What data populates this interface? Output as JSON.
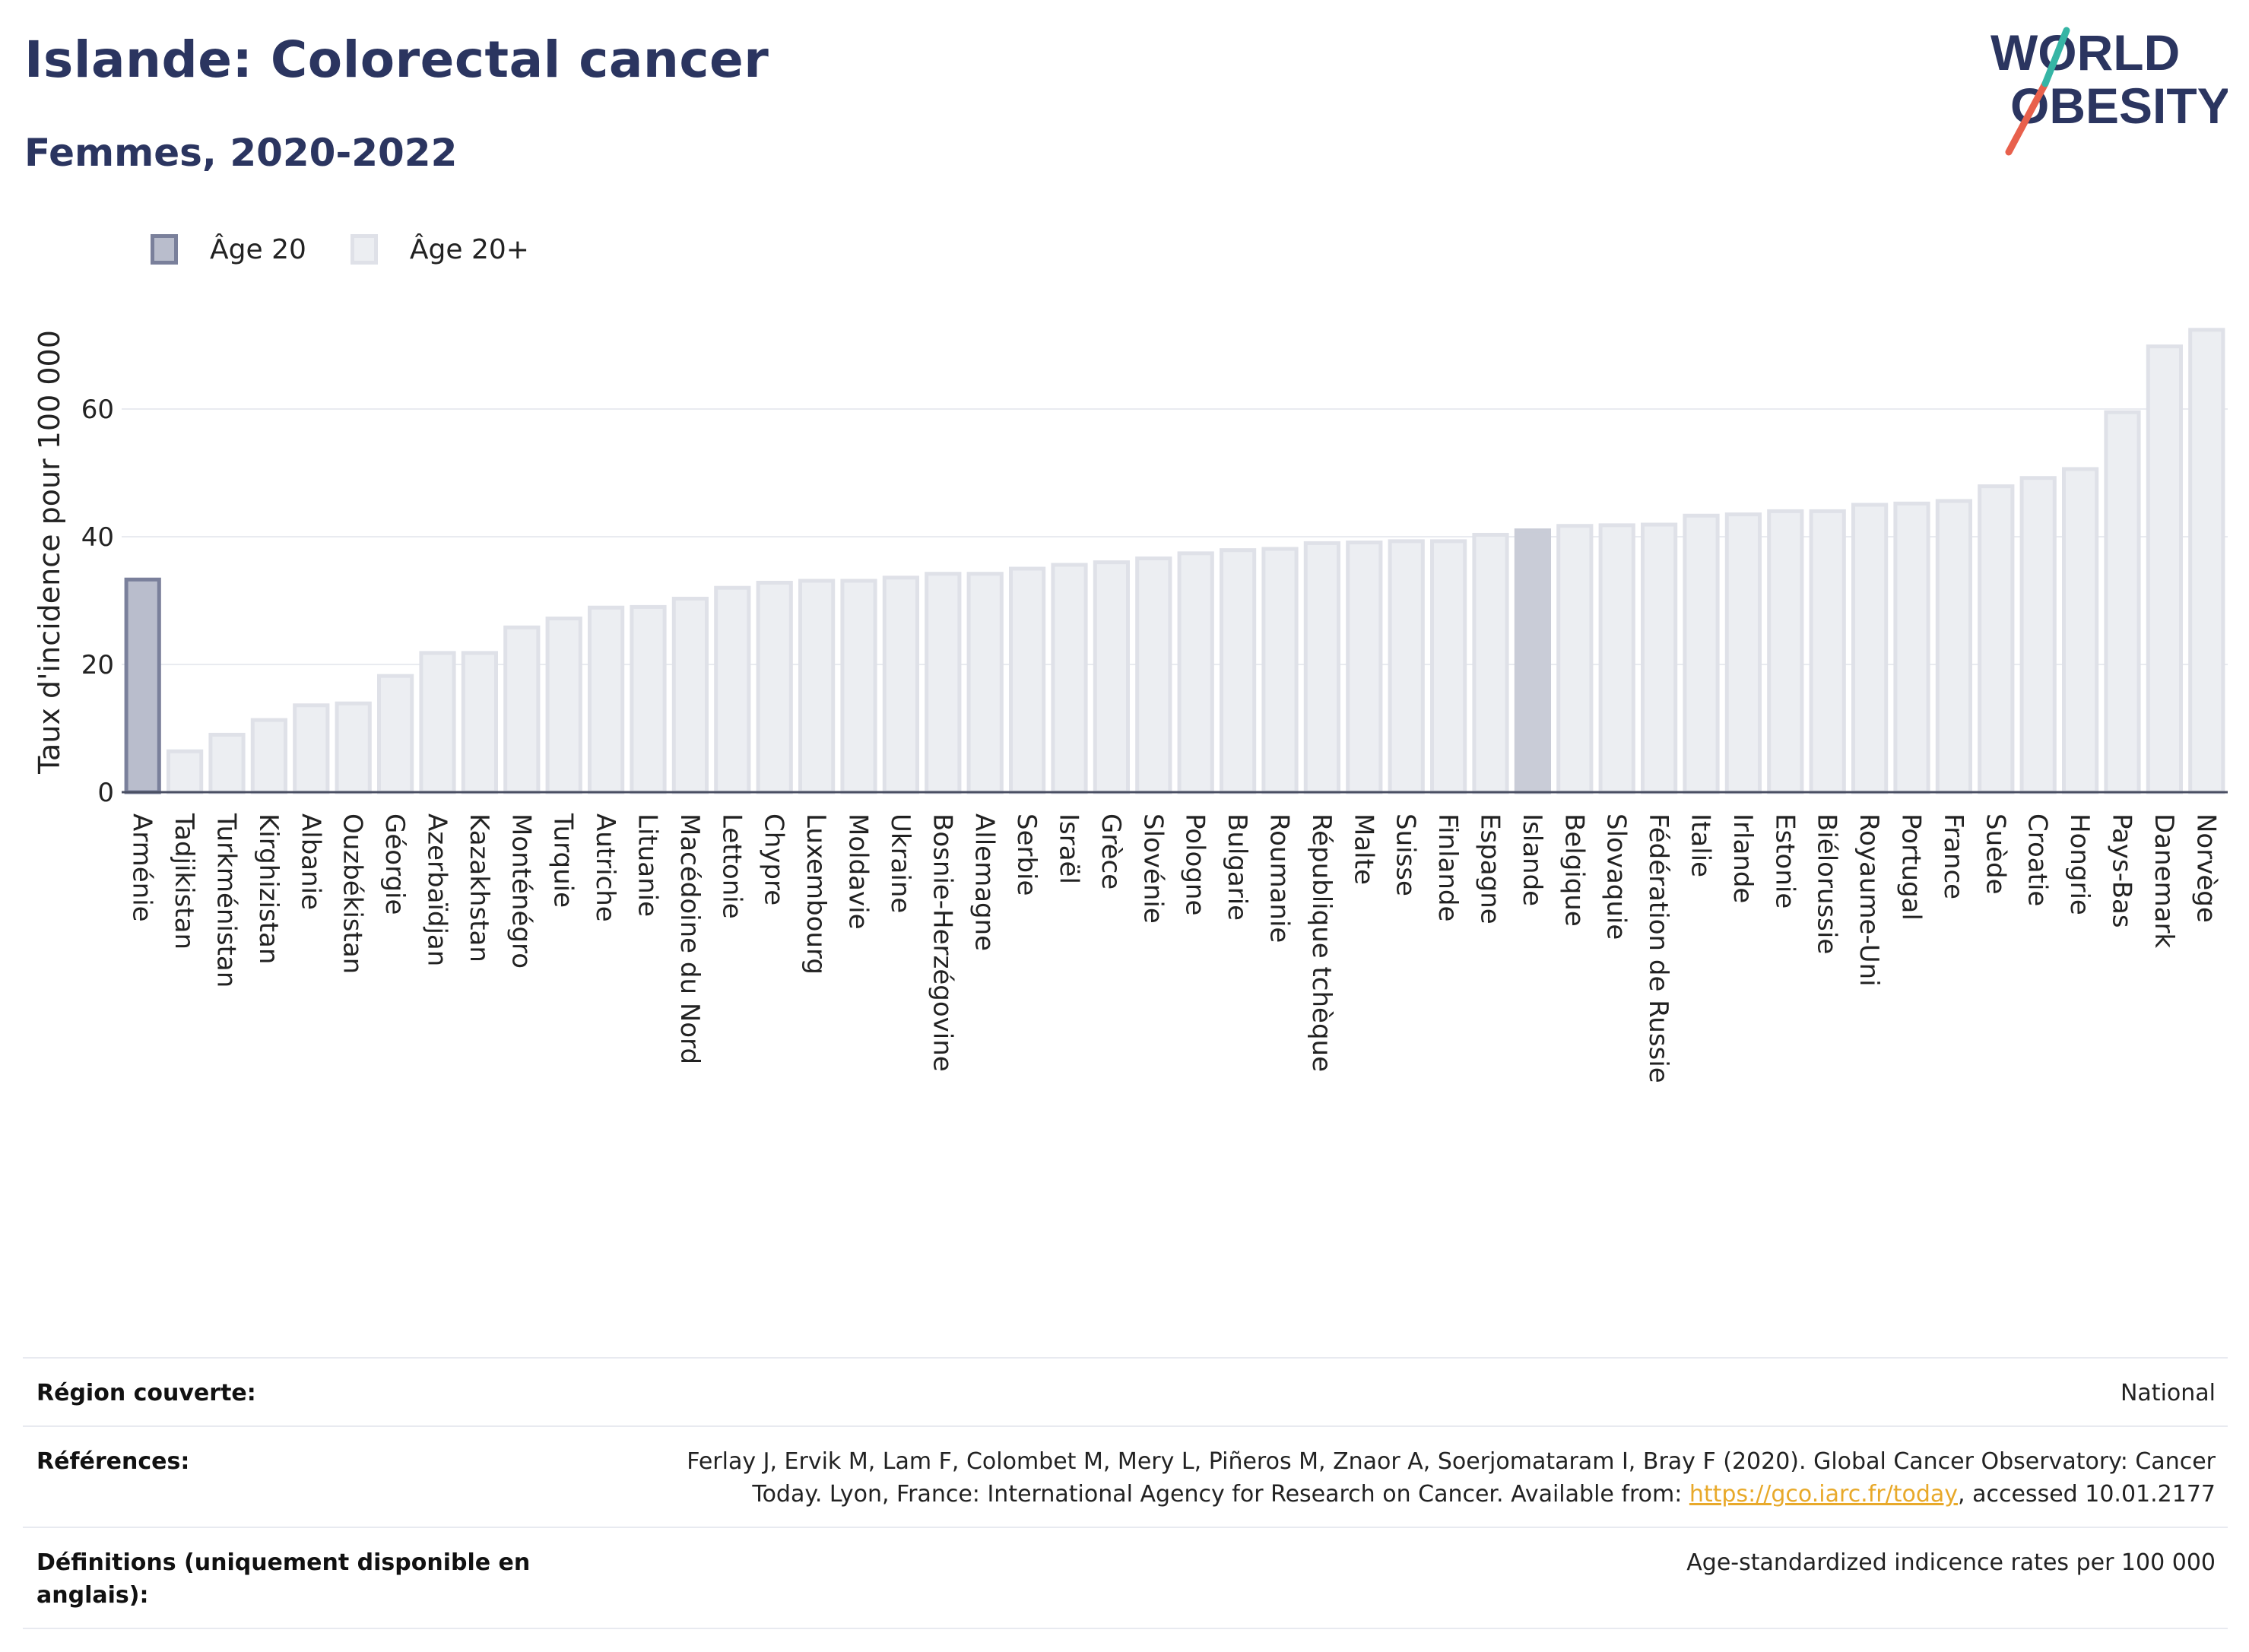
{
  "header": {
    "title": "Islande: Colorectal cancer",
    "subtitle": "Femmes, 2020-2022"
  },
  "logo": {
    "line1": "WORLD",
    "line2": "OBESITY"
  },
  "legend": {
    "age20": "Âge 20",
    "age20plus": "Âge 20+"
  },
  "colors": {
    "age20_fill": "#b9bdcc",
    "age20_stroke": "#7a809b",
    "age20plus_fill": "#eceef2",
    "age20plus_stroke": "#dfe1e8",
    "highlight_fill": "#c9ccd7",
    "title": "#2b3560",
    "link": "#e8a92a"
  },
  "chart_data": {
    "type": "bar",
    "ylabel": "Taux d'incidence pour 100 000",
    "xlabel": "",
    "ylim": [
      0,
      75
    ],
    "yticks": [
      0,
      20,
      40,
      60
    ],
    "grid": true,
    "legend_position": "top-left",
    "highlight": "Islande",
    "categories": [
      "Arménie",
      "Tadjikistan",
      "Turkménistan",
      "Kirghizistan",
      "Albanie",
      "Ouzbékistan",
      "Géorgie",
      "Azerbaïdjan",
      "Kazakhstan",
      "Monténégro",
      "Turquie",
      "Autriche",
      "Lituanie",
      "Macédoine du Nord",
      "Lettonie",
      "Chypre",
      "Luxembourg",
      "Moldavie",
      "Ukraine",
      "Bosnie-Herzégovine",
      "Allemagne",
      "Serbie",
      "Israël",
      "Grèce",
      "Slovénie",
      "Pologne",
      "Bulgarie",
      "Roumanie",
      "République tchèque",
      "Malte",
      "Suisse",
      "Finlande",
      "Espagne",
      "Islande",
      "Belgique",
      "Slovaquie",
      "Fédération de Russie",
      "Italie",
      "Irlande",
      "Estonie",
      "Biélorussie",
      "Royaume-Uni",
      "Portugal",
      "France",
      "Suède",
      "Croatie",
      "Hongrie",
      "Pays-Bas",
      "Danemark",
      "Norvège"
    ],
    "series": [
      {
        "name": "Âge 20",
        "values": [
          33.3,
          null,
          null,
          null,
          null,
          null,
          null,
          null,
          null,
          null,
          null,
          null,
          null,
          null,
          null,
          null,
          null,
          null,
          null,
          null,
          null,
          null,
          null,
          null,
          null,
          null,
          null,
          null,
          null,
          null,
          null,
          null,
          null,
          null,
          null,
          null,
          null,
          null,
          null,
          null,
          null,
          null,
          null,
          null,
          null,
          null,
          null,
          null,
          null,
          null
        ]
      },
      {
        "name": "Âge 20+",
        "values": [
          null,
          6.4,
          9.0,
          11.3,
          13.6,
          13.9,
          18.2,
          21.8,
          21.8,
          25.8,
          27.2,
          28.9,
          29.0,
          30.3,
          32.0,
          32.8,
          33.1,
          33.1,
          33.6,
          34.2,
          34.2,
          35.0,
          35.6,
          36.0,
          36.6,
          37.4,
          37.9,
          38.1,
          39.0,
          39.1,
          39.3,
          39.3,
          40.3,
          41.0,
          41.7,
          41.8,
          41.9,
          43.3,
          43.5,
          44.0,
          44.0,
          45.0,
          45.2,
          45.6,
          47.9,
          49.2,
          50.6,
          59.5,
          69.8,
          72.4
        ]
      }
    ]
  },
  "meta": {
    "region_label": "Région couverte:",
    "region_value": "National",
    "refs_label": "Références:",
    "refs_line1": "Ferlay J, Ervik M, Lam F, Colombet M, Mery L, Piñeros M, Znaor A, Soerjomataram I, Bray F (2020). Global Cancer Observatory: Cancer",
    "refs_line2_pre": "Today. Lyon, France: International Agency for Research on Cancer. Available from: ",
    "refs_link": "https://gco.iarc.fr/today",
    "refs_line2_post": ", accessed 10.01.2177",
    "defs_label": "Définitions (uniquement disponible en anglais):",
    "defs_value": "Age-standardized indicence rates per 100 000"
  }
}
